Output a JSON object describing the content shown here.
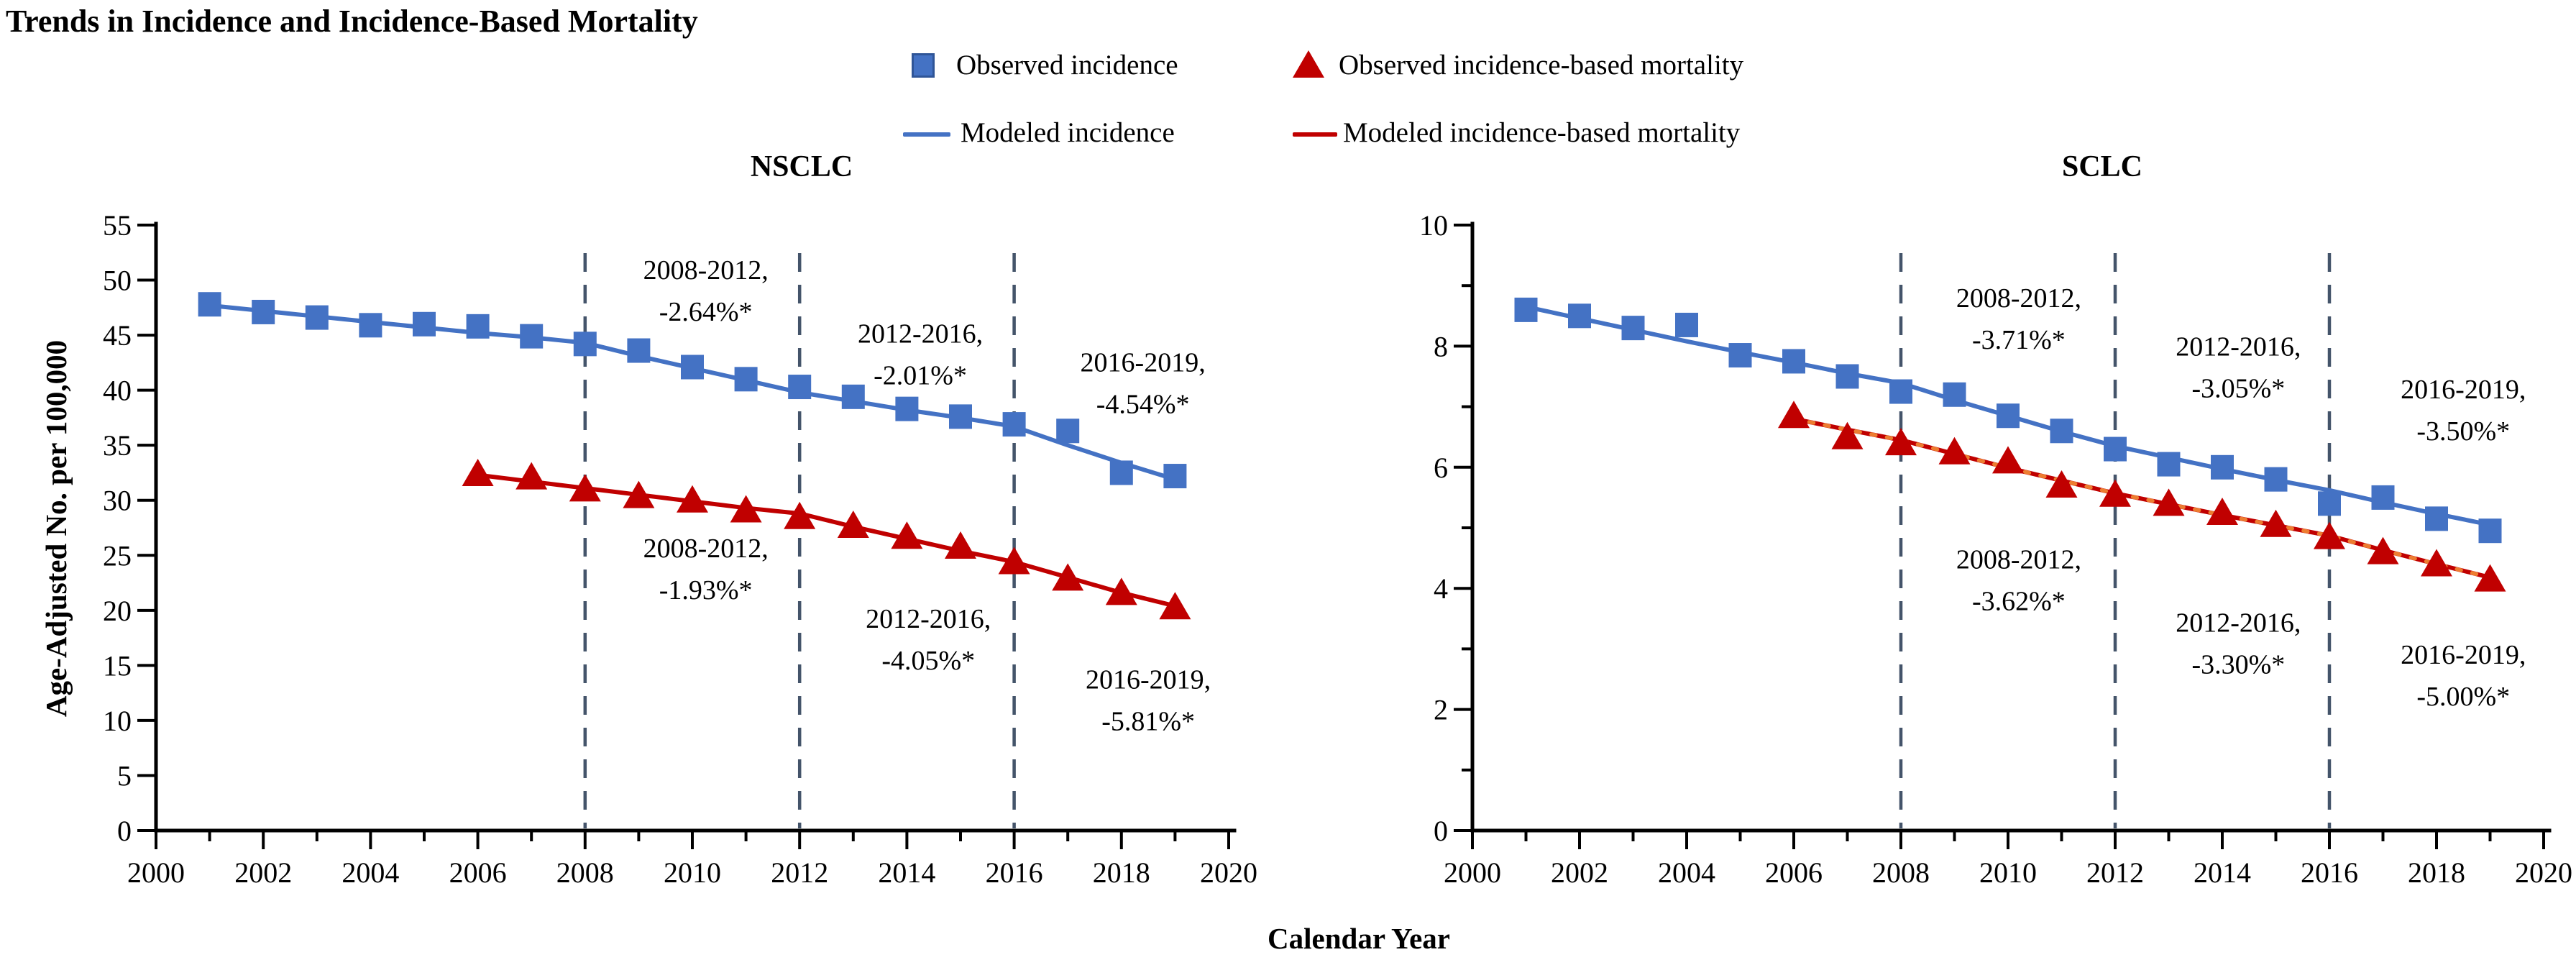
{
  "figure_title": "Trends in Incidence and Incidence-Based Mortality",
  "axes_titles": {
    "y": "Age-Adjusted No. per 100,000",
    "x": "Calendar Year"
  },
  "legend": {
    "items": [
      {
        "label": "Observed incidence",
        "marker": "blue-square"
      },
      {
        "label": "Observed incidence-based mortality",
        "marker": "red-triangle"
      },
      {
        "label": "Modeled incidence",
        "marker": "blue-line"
      },
      {
        "label": "Modeled  incidence-based mortality",
        "marker": "red-line"
      }
    ]
  },
  "colors": {
    "blue": "#4472C4",
    "blue_dark": "#2F5597",
    "red": "#C00000",
    "orange": "#ED7D31",
    "divider": "#44546A",
    "axis": "#000000"
  },
  "chart_data": {
    "type": "line",
    "panels": [
      {
        "title": "NSCLC",
        "x_range": [
          2000,
          2020
        ],
        "y_range": [
          0,
          55
        ],
        "x_ticks": [
          2000,
          2002,
          2004,
          2006,
          2008,
          2010,
          2012,
          2014,
          2016,
          2018,
          2020
        ],
        "x_minor_ticks": [
          2001,
          2003,
          2005,
          2007,
          2009,
          2011,
          2013,
          2015,
          2017,
          2019
        ],
        "y_ticks": [
          0,
          5,
          10,
          15,
          20,
          25,
          30,
          35,
          40,
          45,
          50,
          55
        ],
        "y_minor_ticks": [],
        "vlines": [
          2008,
          2012,
          2016
        ],
        "series": [
          {
            "name": "Modeled incidence",
            "style": "line",
            "color": "blue",
            "x": [
              2001,
              2002,
              2003,
              2004,
              2005,
              2006,
              2007,
              2008,
              2009,
              2010,
              2011,
              2012,
              2013,
              2014,
              2015,
              2016,
              2017,
              2018,
              2019
            ],
            "y": [
              47.7,
              47.2,
              46.7,
              46.2,
              45.7,
              45.2,
              44.8,
              44.3,
              43.1,
              42.0,
              40.9,
              39.8,
              39.0,
              38.2,
              37.5,
              36.7,
              35.0,
              33.4,
              31.9
            ]
          },
          {
            "name": "Modeled incidence-based mortality",
            "style": "line",
            "color": "red",
            "x": [
              2006,
              2007,
              2008,
              2009,
              2010,
              2011,
              2012,
              2013,
              2014,
              2015,
              2016,
              2017,
              2018,
              2019
            ],
            "y": [
              32.3,
              31.7,
              31.1,
              30.5,
              29.9,
              29.3,
              28.8,
              27.6,
              26.5,
              25.4,
              24.4,
              23.0,
              21.6,
              20.4
            ]
          },
          {
            "name": "Observed incidence",
            "style": "square",
            "color": "blue",
            "x": [
              2001,
              2002,
              2003,
              2004,
              2005,
              2006,
              2007,
              2008,
              2009,
              2010,
              2011,
              2012,
              2013,
              2014,
              2015,
              2016,
              2017,
              2018,
              2019
            ],
            "y": [
              47.8,
              47.1,
              46.6,
              45.9,
              46.0,
              45.8,
              44.9,
              44.2,
              43.6,
              42.1,
              41.0,
              40.3,
              39.4,
              38.3,
              37.6,
              36.9,
              36.3,
              32.5,
              32.2
            ]
          },
          {
            "name": "Observed incidence-based mortality",
            "style": "triangle",
            "color": "red",
            "x": [
              2006,
              2007,
              2008,
              2009,
              2010,
              2011,
              2012,
              2013,
              2014,
              2015,
              2016,
              2017,
              2018,
              2019
            ],
            "y": [
              32.4,
              32.1,
              31.0,
              30.4,
              30.0,
              29.1,
              28.5,
              27.7,
              26.7,
              25.8,
              24.4,
              22.9,
              21.6,
              20.3
            ]
          }
        ],
        "annotations": [
          {
            "lines": [
              "2008-2012,",
              "-2.64%*"
            ],
            "x": 2010.25,
            "y": 49.2
          },
          {
            "lines": [
              "2012-2016,",
              "-2.01%*"
            ],
            "x": 2014.25,
            "y": 43.4
          },
          {
            "lines": [
              "2016-2019,",
              "-4.54%*"
            ],
            "x": 2018.4,
            "y": 40.8
          },
          {
            "lines": [
              "2008-2012,",
              "-1.93%*"
            ],
            "x": 2010.25,
            "y": 23.9
          },
          {
            "lines": [
              "2012-2016,",
              "-4.05%*"
            ],
            "x": 2014.4,
            "y": 17.5
          },
          {
            "lines": [
              "2016-2019,",
              "-5.81%*"
            ],
            "x": 2018.5,
            "y": 12.0
          }
        ]
      },
      {
        "title": "SCLC",
        "x_range": [
          2000,
          2020
        ],
        "y_range": [
          0,
          10
        ],
        "x_ticks": [
          2000,
          2002,
          2004,
          2006,
          2008,
          2010,
          2012,
          2014,
          2016,
          2018,
          2020
        ],
        "x_minor_ticks": [
          2001,
          2003,
          2005,
          2007,
          2009,
          2011,
          2013,
          2015,
          2017,
          2019
        ],
        "y_ticks": [
          0,
          2,
          4,
          6,
          8,
          10
        ],
        "y_minor_ticks": [
          1,
          3,
          5,
          7,
          9
        ],
        "vlines": [
          2008,
          2012,
          2016
        ],
        "series": [
          {
            "name": "Modeled incidence",
            "style": "line",
            "color": "blue",
            "x": [
              2001,
              2002,
              2003,
              2004,
              2005,
              2006,
              2007,
              2008,
              2009,
              2010,
              2011,
              2012,
              2013,
              2014,
              2015,
              2016,
              2017,
              2018,
              2019
            ],
            "y": [
              8.65,
              8.46,
              8.27,
              8.08,
              7.9,
              7.73,
              7.55,
              7.39,
              7.11,
              6.85,
              6.59,
              6.35,
              6.16,
              5.97,
              5.79,
              5.62,
              5.42,
              5.23,
              5.05
            ]
          },
          {
            "name": "Modeled incidence-based mortality",
            "style": "line-dotted-overlay",
            "color": "red",
            "x": [
              2006,
              2007,
              2008,
              2009,
              2010,
              2011,
              2012,
              2013,
              2014,
              2015,
              2016,
              2017,
              2018,
              2019
            ],
            "y": [
              6.8,
              6.62,
              6.45,
              6.22,
              5.99,
              5.78,
              5.57,
              5.39,
              5.21,
              5.04,
              4.87,
              4.63,
              4.4,
              4.18
            ]
          },
          {
            "name": "Observed incidence",
            "style": "square",
            "color": "blue",
            "x": [
              2001,
              2002,
              2003,
              2004,
              2005,
              2006,
              2007,
              2008,
              2009,
              2010,
              2011,
              2012,
              2013,
              2014,
              2015,
              2016,
              2017,
              2018,
              2019
            ],
            "y": [
              8.6,
              8.5,
              8.3,
              8.35,
              7.85,
              7.75,
              7.5,
              7.25,
              7.2,
              6.85,
              6.6,
              6.3,
              6.05,
              6.0,
              5.8,
              5.4,
              5.5,
              5.15,
              4.95
            ]
          },
          {
            "name": "Observed incidence-based mortality",
            "style": "triangle",
            "color": "red",
            "x": [
              2006,
              2007,
              2008,
              2009,
              2010,
              2011,
              2012,
              2013,
              2014,
              2015,
              2016,
              2017,
              2018,
              2019
            ],
            "y": [
              6.85,
              6.5,
              6.4,
              6.25,
              6.1,
              5.7,
              5.55,
              5.4,
              5.25,
              5.05,
              4.85,
              4.6,
              4.4,
              4.15
            ]
          }
        ],
        "annotations": [
          {
            "lines": [
              "2008-2012,",
              "-3.71%*"
            ],
            "x": 2010.2,
            "y": 8.48
          },
          {
            "lines": [
              "2012-2016,",
              "-3.05%*"
            ],
            "x": 2014.3,
            "y": 7.68
          },
          {
            "lines": [
              "2016-2019,",
              "-3.50%*"
            ],
            "x": 2018.5,
            "y": 6.97
          },
          {
            "lines": [
              "2008-2012,",
              "-3.62%*"
            ],
            "x": 2010.2,
            "y": 4.16
          },
          {
            "lines": [
              "2012-2016,",
              "-3.30%*"
            ],
            "x": 2014.3,
            "y": 3.12
          },
          {
            "lines": [
              "2016-2019,",
              "-5.00%*"
            ],
            "x": 2018.5,
            "y": 2.59
          }
        ]
      }
    ]
  }
}
